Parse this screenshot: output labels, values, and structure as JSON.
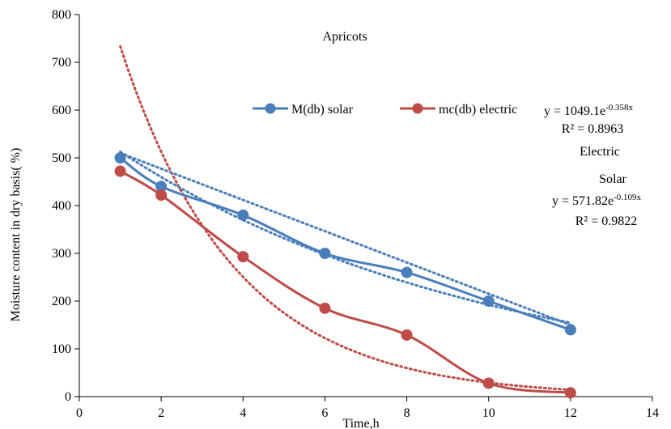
{
  "chart_data": {
    "type": "line",
    "title": "Apricots",
    "xlabel": "Time,h",
    "ylabel": "Moisture content in dry basis( %)",
    "xlim": [
      0,
      14
    ],
    "ylim": [
      0,
      800
    ],
    "xticks": [
      0,
      2,
      4,
      6,
      8,
      10,
      12,
      14
    ],
    "yticks": [
      0,
      100,
      200,
      300,
      400,
      500,
      600,
      700,
      800
    ],
    "grid": false,
    "legend_position": "top",
    "x": [
      1,
      2,
      4,
      6,
      8,
      10,
      12
    ],
    "series": [
      {
        "name": "M(db) solar",
        "color": "#4a7ebb",
        "values": [
          500,
          440,
          380,
          300,
          260,
          200,
          140
        ]
      },
      {
        "name": "mc(db) electric",
        "color": "#be4b48",
        "values": [
          472,
          422,
          293,
          185,
          129,
          28,
          8
        ]
      }
    ],
    "trendlines": [
      {
        "type": "exponential",
        "series": "mc(db) electric",
        "color": "#be4b48",
        "a": 1049.1,
        "b": -0.358,
        "x_range": [
          1,
          12
        ]
      },
      {
        "type": "exponential",
        "series": "M(db) solar",
        "color": "#4a7ebb",
        "a": 571.82,
        "b": -0.109,
        "x_range": [
          1,
          12
        ]
      },
      {
        "type": "linear",
        "series": "M(db) solar",
        "color": "#4a7ebb",
        "x_range": [
          1,
          12
        ],
        "y_start": 510,
        "y_end": 150
      }
    ],
    "annotations": {
      "electric_eq_prefix": "y = 1049.1e",
      "electric_eq_exp": "-0.358x",
      "electric_r2": "R² = 0.8963",
      "electric_label": "Electric",
      "solar_label": "Solar",
      "solar_eq_prefix": "y = 571.82e",
      "solar_eq_exp": "-0.109x",
      "solar_r2": "R² = 0.9822"
    }
  }
}
